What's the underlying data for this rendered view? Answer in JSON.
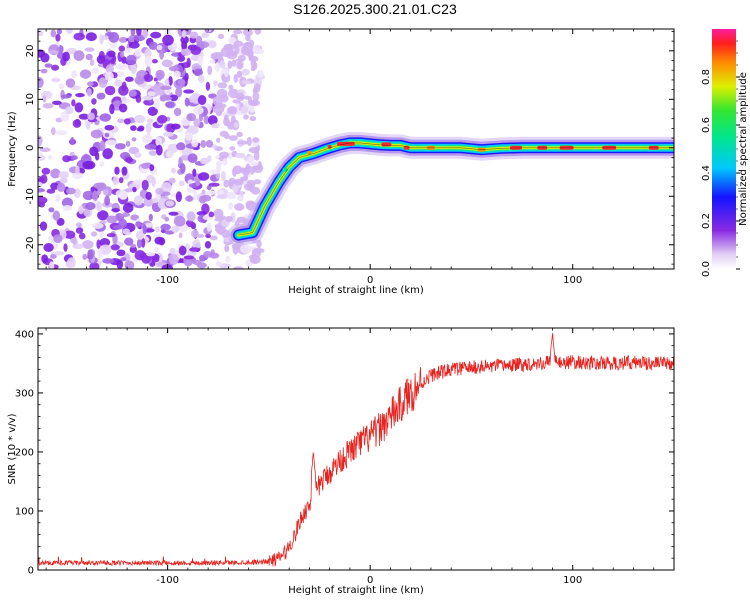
{
  "title": "S126.2025.300.21.01.C23",
  "chart_data": [
    {
      "type": "heatmap",
      "title": "S126.2025.300.21.01.C23",
      "xlabel": "Height of straight line (km)",
      "ylabel": "Frequency (Hz)",
      "xlim": [
        -164,
        150
      ],
      "ylim": [
        -25,
        24.5
      ],
      "xticks": [
        -100,
        0,
        100
      ],
      "xtick_labels": [
        "-100",
        "0",
        "100"
      ],
      "yticks": [
        -20,
        -10,
        0,
        10,
        20
      ],
      "ytick_labels": [
        "-20",
        "-10",
        "0",
        "10",
        "20"
      ],
      "noise_region_x": [
        -164,
        -54
      ],
      "ridge": {
        "x": [
          -65,
          -58,
          -52,
          -45,
          -40,
          -35,
          -28,
          -22,
          -15,
          -10,
          -5,
          0,
          5,
          10,
          15,
          20,
          30,
          45,
          55,
          65,
          75,
          85,
          95,
          110,
          130,
          150
        ],
        "y": [
          -18,
          -17.5,
          -12,
          -7,
          -4,
          -2,
          -1.2,
          -0.3,
          0.6,
          1.0,
          1.0,
          0.8,
          0.6,
          0.5,
          0.5,
          0.0,
          0.0,
          0.0,
          -0.4,
          -0.1,
          0.0,
          0.0,
          0.0,
          0.0,
          0.0,
          0.0
        ]
      },
      "colorbar": {
        "label": "Normalized spectral amplitude",
        "range": [
          0,
          1
        ],
        "ticks": [
          0.0,
          0.2,
          0.4,
          0.6,
          0.8
        ],
        "tick_labels": [
          "0.0",
          "0.2",
          "0.4",
          "0.6",
          "0.8"
        ]
      }
    },
    {
      "type": "line",
      "xlabel": "Height of straight line (km)",
      "ylabel": "SNR (10 * v/v)",
      "xlim": [
        -164,
        150
      ],
      "ylim": [
        0,
        410
      ],
      "xticks": [
        -100,
        0,
        100
      ],
      "xtick_labels": [
        "-100",
        "0",
        "100"
      ],
      "yticks": [
        0,
        100,
        200,
        300,
        400
      ],
      "ytick_labels": [
        "0",
        "100",
        "200",
        "300",
        "400"
      ],
      "series": [
        {
          "name": "SNR",
          "color": "#e8231f",
          "x": [
            -164,
            -140,
            -120,
            -100,
            -80,
            -60,
            -50,
            -45,
            -42,
            -40,
            -37,
            -35,
            -33,
            -30,
            -28,
            -25,
            -20,
            -15,
            -10,
            -5,
            0,
            5,
            10,
            15,
            20,
            25,
            30,
            40,
            50,
            60,
            70,
            80,
            90,
            100,
            110,
            120,
            130,
            140,
            150
          ],
          "values": [
            12,
            12,
            12,
            12,
            12,
            13,
            15,
            20,
            30,
            40,
            60,
            80,
            95,
            110,
            125,
            145,
            165,
            185,
            200,
            215,
            225,
            240,
            260,
            280,
            300,
            315,
            330,
            340,
            343,
            345,
            347,
            350,
            352,
            352,
            350,
            350,
            352,
            350,
            350
          ]
        }
      ],
      "annotations": [
        {
          "x": -28,
          "y": 205,
          "label": "spike"
        },
        {
          "x": 90,
          "y": 410,
          "label": "spike"
        }
      ]
    }
  ],
  "colors": {
    "noise": "#8a2be2",
    "line": "#e8231f",
    "frame": "#000000"
  }
}
